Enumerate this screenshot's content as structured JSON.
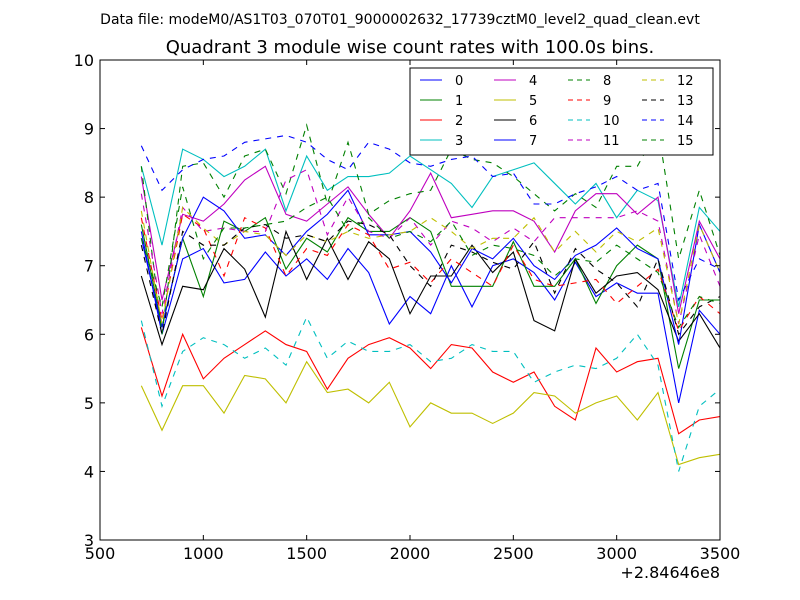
{
  "chart_data": {
    "type": "line",
    "suptitle": "Data file: modeM0/AS1T03_070T01_9000002632_17739cztM0_level2_quad_clean.evt",
    "title": "Quadrant 3 module wise count rates with 100.0s bins.",
    "xlabel": "",
    "ylabel": "",
    "x_offset_label": "+2.84646e8",
    "xlim": [
      500,
      3500
    ],
    "ylim": [
      3,
      10
    ],
    "xticks": [
      500,
      1000,
      1500,
      2000,
      2500,
      3000,
      3500
    ],
    "yticks": [
      3,
      4,
      5,
      6,
      7,
      8,
      9,
      10
    ],
    "x_offset": 284646000,
    "legend": {
      "position": "top-right",
      "columns": 4
    },
    "x": [
      700,
      800,
      900,
      1000,
      1100,
      1200,
      1300,
      1400,
      1500,
      1600,
      1700,
      1800,
      1900,
      2000,
      2100,
      2200,
      2300,
      2400,
      2500,
      2600,
      2700,
      2800,
      2900,
      3000,
      3100,
      3200,
      3300,
      3400,
      3500
    ],
    "series": [
      {
        "name": "0",
        "color": "#0000ff",
        "dash": "solid",
        "values": [
          7.5,
          6.0,
          7.1,
          7.25,
          6.75,
          6.8,
          7.2,
          6.85,
          7.1,
          6.8,
          7.25,
          6.9,
          6.15,
          6.55,
          6.3,
          7.0,
          6.4,
          7.0,
          7.1,
          6.9,
          6.5,
          7.05,
          6.55,
          6.75,
          6.6,
          6.6,
          5.0,
          6.35,
          6.0
        ]
      },
      {
        "name": "1",
        "color": "#008000",
        "dash": "solid",
        "values": [
          7.6,
          6.1,
          7.4,
          6.55,
          7.65,
          7.5,
          7.7,
          6.95,
          7.4,
          7.2,
          7.7,
          7.5,
          7.5,
          7.7,
          7.5,
          6.7,
          6.7,
          6.7,
          7.35,
          6.7,
          6.7,
          7.1,
          6.45,
          7.0,
          7.3,
          7.1,
          5.5,
          6.5,
          6.5
        ]
      },
      {
        "name": "2",
        "color": "#ff0000",
        "dash": "solid",
        "values": [
          6.1,
          5.1,
          6.0,
          5.35,
          5.65,
          5.85,
          6.05,
          5.85,
          5.75,
          5.2,
          5.65,
          5.85,
          5.95,
          5.8,
          5.5,
          5.85,
          5.8,
          5.45,
          5.3,
          5.45,
          4.95,
          4.75,
          5.8,
          5.45,
          5.6,
          5.65,
          4.55,
          4.75,
          4.8
        ]
      },
      {
        "name": "3",
        "color": "#00bfbf",
        "dash": "solid",
        "values": [
          8.45,
          7.3,
          8.7,
          8.55,
          8.3,
          8.45,
          8.7,
          7.8,
          8.6,
          8.1,
          8.3,
          8.3,
          8.35,
          8.6,
          8.4,
          8.2,
          7.85,
          8.3,
          8.4,
          8.5,
          8.2,
          7.9,
          8.2,
          7.7,
          8.1,
          7.95,
          6.4,
          7.85,
          7.5
        ]
      },
      {
        "name": "4",
        "color": "#bf00bf",
        "dash": "solid",
        "values": [
          8.3,
          6.5,
          7.75,
          7.65,
          7.9,
          8.25,
          8.45,
          7.75,
          7.65,
          7.9,
          8.15,
          7.75,
          7.4,
          7.8,
          8.35,
          7.7,
          7.75,
          7.8,
          7.8,
          7.65,
          7.2,
          7.8,
          8.05,
          8.05,
          7.75,
          8.0,
          6.3,
          7.65,
          7.1
        ]
      },
      {
        "name": "5",
        "color": "#bfbf00",
        "dash": "solid",
        "values": [
          5.25,
          4.6,
          5.25,
          5.25,
          4.85,
          5.4,
          5.35,
          5.0,
          5.6,
          5.15,
          5.2,
          5.0,
          5.3,
          4.65,
          5.0,
          4.85,
          4.85,
          4.7,
          4.85,
          5.15,
          5.1,
          4.85,
          5.0,
          5.1,
          4.75,
          5.15,
          4.1,
          4.2,
          4.25
        ]
      },
      {
        "name": "6",
        "color": "#000000",
        "dash": "solid",
        "values": [
          6.85,
          5.85,
          6.7,
          6.65,
          7.25,
          6.95,
          6.25,
          7.5,
          6.8,
          7.4,
          6.8,
          7.35,
          7.1,
          6.3,
          6.85,
          6.85,
          7.3,
          6.9,
          7.2,
          6.2,
          6.05,
          7.1,
          6.6,
          6.85,
          6.9,
          6.65,
          5.9,
          6.3,
          5.8
        ]
      },
      {
        "name": "7",
        "color": "#0000ff",
        "dash": "solid",
        "values": [
          7.4,
          6.1,
          7.4,
          8.0,
          7.8,
          7.4,
          7.45,
          7.15,
          7.5,
          7.75,
          8.1,
          7.45,
          7.45,
          7.5,
          7.2,
          6.75,
          7.25,
          7.1,
          7.4,
          7.0,
          6.8,
          7.15,
          7.3,
          7.55,
          7.25,
          7.1,
          5.85,
          7.6,
          6.9
        ]
      },
      {
        "name": "8",
        "color": "#008000",
        "dash": "dashed",
        "values": [
          8.45,
          6.0,
          8.45,
          8.5,
          8.0,
          8.6,
          8.7,
          8.05,
          9.05,
          7.9,
          8.8,
          7.75,
          7.95,
          8.05,
          8.1,
          8.7,
          8.55,
          8.5,
          8.3,
          8.05,
          7.8,
          8.05,
          7.85,
          8.45,
          8.45,
          9.0,
          7.1,
          8.1,
          7.15
        ]
      },
      {
        "name": "9",
        "color": "#ff0000",
        "dash": "dashed",
        "values": [
          7.7,
          6.2,
          7.75,
          7.55,
          6.85,
          7.7,
          7.55,
          6.85,
          7.25,
          7.15,
          7.6,
          7.45,
          6.95,
          7.05,
          6.75,
          7.1,
          6.9,
          6.7,
          7.3,
          6.8,
          6.7,
          6.75,
          6.8,
          6.45,
          6.7,
          6.95,
          6.05,
          6.55,
          6.3
        ]
      },
      {
        "name": "10",
        "color": "#00bfbf",
        "dash": "dashed",
        "values": [
          6.2,
          4.95,
          5.75,
          5.95,
          5.85,
          5.65,
          5.8,
          5.55,
          6.25,
          5.65,
          5.9,
          5.75,
          5.75,
          5.85,
          5.6,
          5.65,
          5.85,
          5.75,
          5.75,
          5.3,
          5.45,
          5.55,
          5.5,
          5.65,
          6.0,
          5.55,
          4.0,
          4.95,
          5.2
        ]
      },
      {
        "name": "11",
        "color": "#bf00bf",
        "dash": "dashed",
        "values": [
          8.05,
          6.3,
          7.85,
          7.5,
          7.55,
          7.5,
          7.5,
          8.25,
          8.4,
          7.45,
          8.0,
          7.5,
          7.4,
          7.7,
          7.3,
          7.65,
          7.55,
          7.35,
          7.55,
          7.35,
          7.7,
          7.7,
          7.7,
          7.7,
          7.8,
          7.65,
          6.15,
          7.45,
          6.7
        ]
      },
      {
        "name": "12",
        "color": "#bfbf00",
        "dash": "dashed",
        "values": [
          7.8,
          6.15,
          7.85,
          7.55,
          7.3,
          7.5,
          7.45,
          7.15,
          7.45,
          7.35,
          7.5,
          7.4,
          7.45,
          7.5,
          7.7,
          7.5,
          7.25,
          7.4,
          7.4,
          7.7,
          7.2,
          7.5,
          7.2,
          7.5,
          7.35,
          7.55,
          6.15,
          7.6,
          6.9
        ]
      },
      {
        "name": "13",
        "color": "#000000",
        "dash": "dashed",
        "values": [
          7.3,
          6.0,
          7.5,
          7.3,
          7.3,
          7.55,
          7.6,
          7.4,
          7.45,
          7.35,
          7.65,
          7.6,
          7.45,
          7.0,
          6.7,
          7.3,
          7.2,
          7.05,
          6.95,
          7.35,
          6.6,
          7.25,
          6.95,
          6.75,
          6.4,
          7.1,
          6.0,
          6.4,
          6.55
        ]
      },
      {
        "name": "14",
        "color": "#0000ff",
        "dash": "dashed",
        "values": [
          8.75,
          8.1,
          8.4,
          8.55,
          8.6,
          8.8,
          8.85,
          8.9,
          8.8,
          8.55,
          8.4,
          8.8,
          8.7,
          8.5,
          8.45,
          8.55,
          8.6,
          8.3,
          8.35,
          7.9,
          7.9,
          8.05,
          8.15,
          8.3,
          8.1,
          8.2,
          6.5,
          7.1,
          6.95
        ]
      },
      {
        "name": "15",
        "color": "#008000",
        "dash": "dashed",
        "values": [
          7.4,
          6.4,
          8.15,
          7.1,
          7.55,
          7.55,
          7.6,
          7.65,
          7.85,
          8.0,
          7.5,
          7.7,
          7.4,
          7.5,
          7.35,
          7.65,
          7.15,
          7.3,
          7.25,
          7.15,
          6.85,
          7.1,
          7.05,
          7.3,
          7.1,
          6.9,
          6.1,
          6.55,
          6.45
        ]
      }
    ]
  }
}
